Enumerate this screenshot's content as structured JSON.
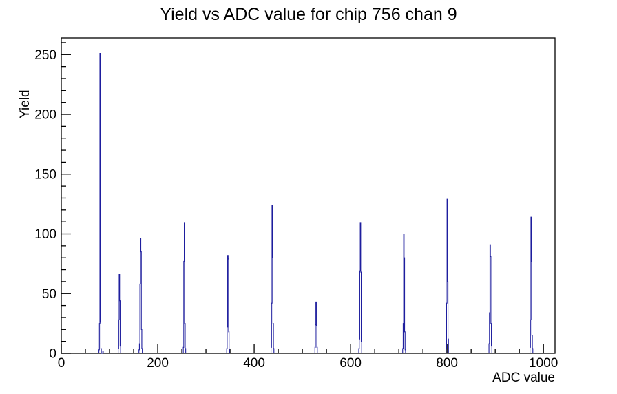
{
  "window": {
    "title": "Yield vs ADC value for chip 756 chan 9"
  },
  "chart_data": {
    "type": "bar",
    "title": "Yield vs ADC value for chip 756 chan 9",
    "xlabel": "ADC value",
    "ylabel": "Yield",
    "xlim": [
      0,
      1024
    ],
    "ylim": [
      0,
      264
    ],
    "x_major_ticks": [
      0,
      200,
      400,
      600,
      800,
      1000
    ],
    "x_minor_step": 50,
    "y_major_ticks": [
      0,
      50,
      100,
      150,
      200,
      250
    ],
    "y_minor_step": 10,
    "grid": false,
    "legend": false,
    "bin_width": 1,
    "line_color": "#1e1e9e",
    "axis_color": "#000000",
    "peaks": [
      {
        "bins": [
          [
            78,
            3
          ],
          [
            79,
            25
          ],
          [
            80,
            251
          ],
          [
            81,
            26
          ],
          [
            82,
            4
          ],
          [
            86,
            2
          ]
        ]
      },
      {
        "bins": [
          [
            118,
            4
          ],
          [
            119,
            28
          ],
          [
            120,
            66
          ],
          [
            121,
            44
          ],
          [
            122,
            6
          ]
        ]
      },
      {
        "bins": [
          [
            161,
            3
          ],
          [
            162,
            8
          ],
          [
            163,
            58
          ],
          [
            164,
            96
          ],
          [
            165,
            85
          ],
          [
            166,
            20
          ],
          [
            167,
            4
          ]
        ]
      },
      {
        "bins": [
          [
            253,
            5
          ],
          [
            254,
            77
          ],
          [
            255,
            109
          ],
          [
            256,
            25
          ],
          [
            257,
            4
          ]
        ]
      },
      {
        "bins": [
          [
            343,
            4
          ],
          [
            344,
            22
          ],
          [
            345,
            82
          ],
          [
            346,
            79
          ],
          [
            347,
            18
          ],
          [
            348,
            3
          ]
        ]
      },
      {
        "bins": [
          [
            435,
            5
          ],
          [
            436,
            42
          ],
          [
            437,
            124
          ],
          [
            438,
            80
          ],
          [
            439,
            25
          ],
          [
            440,
            4
          ]
        ]
      },
      {
        "bins": [
          [
            526,
            5
          ],
          [
            527,
            24
          ],
          [
            528,
            43
          ],
          [
            529,
            23
          ],
          [
            530,
            5
          ]
        ]
      },
      {
        "bins": [
          [
            617,
            4
          ],
          [
            618,
            12
          ],
          [
            619,
            69
          ],
          [
            620,
            109
          ],
          [
            621,
            68
          ],
          [
            622,
            10
          ]
        ]
      },
      {
        "bins": [
          [
            708,
            4
          ],
          [
            709,
            25
          ],
          [
            710,
            100
          ],
          [
            711,
            80
          ],
          [
            712,
            18
          ],
          [
            713,
            3
          ]
        ]
      },
      {
        "bins": [
          [
            798,
            4
          ],
          [
            799,
            42
          ],
          [
            800,
            129
          ],
          [
            801,
            60
          ],
          [
            802,
            12
          ]
        ]
      },
      {
        "bins": [
          [
            887,
            8
          ],
          [
            888,
            34
          ],
          [
            889,
            91
          ],
          [
            890,
            81
          ],
          [
            891,
            25
          ],
          [
            892,
            6
          ]
        ]
      },
      {
        "bins": [
          [
            972,
            5
          ],
          [
            973,
            28
          ],
          [
            974,
            114
          ],
          [
            975,
            77
          ],
          [
            976,
            15
          ],
          [
            977,
            4
          ]
        ]
      }
    ]
  }
}
